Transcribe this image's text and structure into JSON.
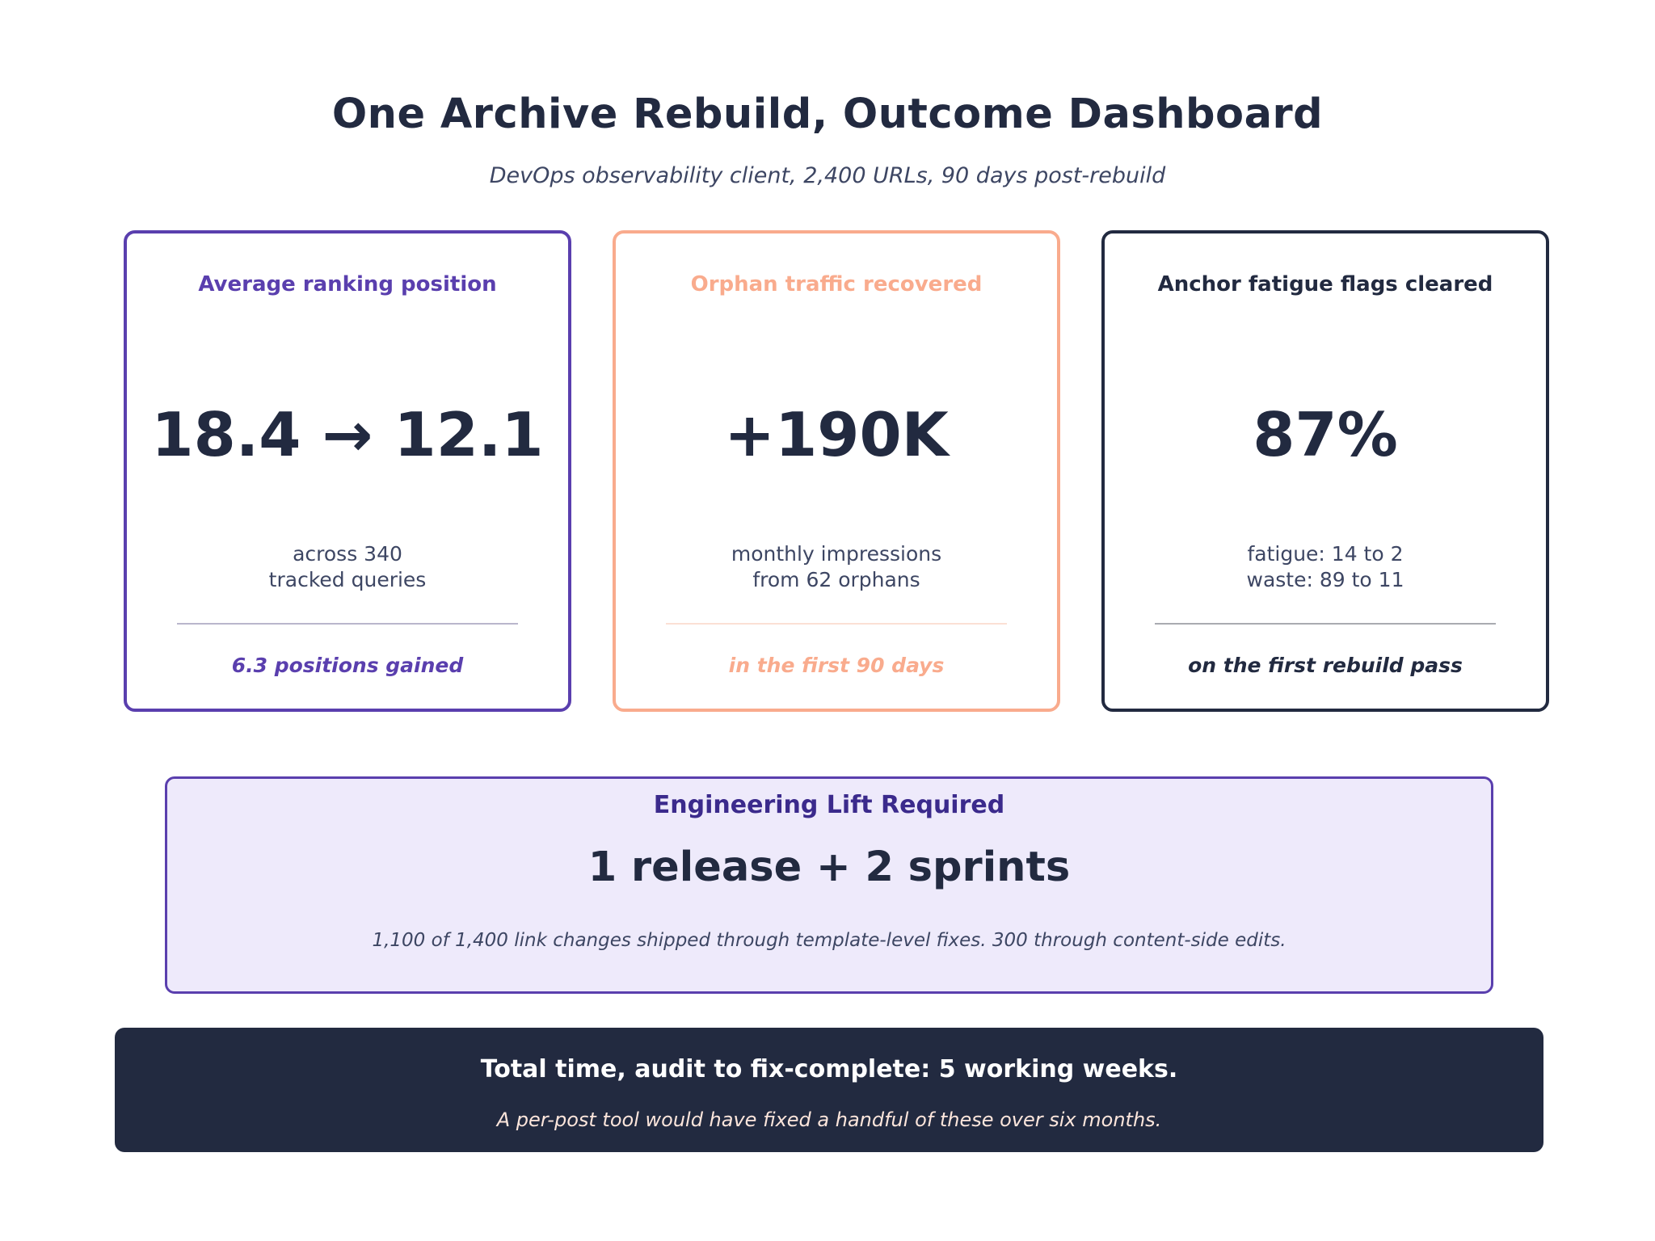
{
  "header": {
    "title": "One Archive Rebuild, Outcome Dashboard",
    "subtitle": "DevOps observability client, 2,400 URLs, 90 days post-rebuild"
  },
  "cards": [
    {
      "label": "Average ranking position",
      "value": "18.4 → 12.1",
      "desc_line1": "across 340",
      "desc_line2": "tracked queries",
      "footnote": "6.3 positions gained",
      "accent": "#5a3fae"
    },
    {
      "label": "Orphan traffic recovered",
      "value": "+190K",
      "desc_line1": "monthly impressions",
      "desc_line2": "from 62 orphans",
      "footnote": "in the first 90 days",
      "accent": "#f9ab8d"
    },
    {
      "label": "Anchor fatigue flags cleared",
      "value": "87%",
      "desc_line1": "fatigue: 14 to 2",
      "desc_line2": "waste: 89 to 11",
      "footnote": "on the first rebuild pass",
      "accent": "#222a40"
    }
  ],
  "lift": {
    "label": "Engineering Lift Required",
    "value": "1 release + 2 sprints",
    "note": "1,100 of 1,400 link changes shipped through template-level fixes. 300 through content-side edits."
  },
  "banner": {
    "main": "Total time, audit to fix-complete: 5 working weeks.",
    "sub": "A per-post tool would have fixed a handful of these over six months."
  },
  "colors": {
    "navy": "#222a40",
    "purple": "#5a3fae",
    "peach": "#f9ab8d",
    "lavender_bg": "#eeeafb"
  }
}
